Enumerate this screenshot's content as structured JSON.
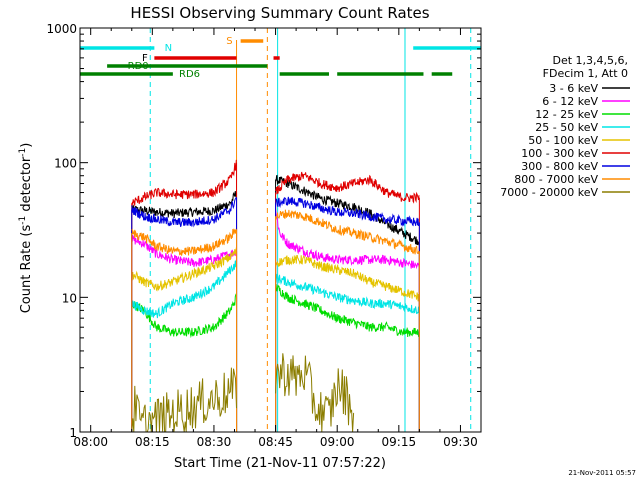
{
  "chart_data": {
    "type": "line",
    "title": "HESSI Observing Summary Count Rates",
    "xlabel": "Start Time (21-Nov-11 07:57:22)",
    "ylabel_main": "Count Rate (s",
    "ylabel_sup1": "-1",
    "ylabel_mid": " detector",
    "ylabel_sup2": "-1",
    "ylabel_end": ")",
    "y_scale": "log",
    "ylim": [
      1,
      1000
    ],
    "xlim_min": [
      -2.6,
      95
    ],
    "x_unit": "minutes after 08:00",
    "x_ticks": [
      {
        "label": "08:00",
        "value": 0
      },
      {
        "label": "08:15",
        "value": 15
      },
      {
        "label": "08:30",
        "value": 30
      },
      {
        "label": "08:45",
        "value": 45
      },
      {
        "label": "09:00",
        "value": 60
      },
      {
        "label": "09:15",
        "value": 75
      },
      {
        "label": "09:30",
        "value": 90
      }
    ],
    "y_ticks": [
      {
        "label": "1",
        "value": 1
      },
      {
        "label": "10",
        "value": 10
      },
      {
        "label": "100",
        "value": 100
      },
      {
        "label": "1000",
        "value": 1000
      }
    ],
    "legend_position": "right",
    "legend_header": [
      "Det 1,3,4,5,6,",
      "FDecim 1, Att 0"
    ],
    "legend": [
      {
        "label": "3 - 6 keV",
        "color": "#000000"
      },
      {
        "label": "6 - 12 keV",
        "color": "#ff00ff"
      },
      {
        "label": "12 - 25 keV",
        "color": "#00dd00"
      },
      {
        "label": "25 - 50 keV",
        "color": "#00e5e5"
      },
      {
        "label": "50 - 100 keV",
        "color": "#e5c300"
      },
      {
        "label": "100 - 300 keV",
        "color": "#e00000"
      },
      {
        "label": "300 - 800 keV",
        "color": "#0000e0"
      },
      {
        "label": "800 - 7000 keV",
        "color": "#ff8c00"
      },
      {
        "label": "7000 - 20000 keV",
        "color": "#8b7d00"
      }
    ],
    "flag_labels": {
      "saa": "S",
      "flare": "F",
      "night": "N",
      "rd0": "RD0",
      "rd6": "RD6"
    },
    "flags": {
      "saa": {
        "color": "#ff8c00",
        "intervals": [
          [
            36.5,
            42
          ]
        ]
      },
      "flare": {
        "color": "#e00000",
        "intervals": [
          [
            15.5,
            35.5
          ],
          [
            44.5,
            46
          ]
        ]
      },
      "night": {
        "color": "#00e5e5",
        "intervals": [
          [
            -2.6,
            15.5
          ],
          [
            78.5,
            95
          ]
        ]
      },
      "rd0": {
        "color": "#008000",
        "intervals": [
          [
            4,
            43
          ]
        ]
      },
      "rd6": {
        "color": "#008000",
        "intervals": [
          [
            -2.6,
            20
          ],
          [
            46,
            58
          ],
          [
            60,
            81
          ],
          [
            83,
            88
          ]
        ]
      }
    },
    "vlines_solid": {
      "color": "#00e5e5",
      "values": [
        45.5,
        76.5
      ]
    },
    "vlines_dashed": [
      {
        "color": "#00e5e5",
        "values": [
          14.5,
          92.5
        ]
      },
      {
        "color": "#ff8c00",
        "values": [
          43
        ]
      }
    ],
    "saa_verticals": {
      "color": "#ff8c00",
      "values": [
        35.5
      ]
    },
    "segments": [
      [
        10,
        35.5
      ],
      [
        45,
        80
      ]
    ],
    "series": [
      {
        "name": "3 - 6 keV",
        "color": "#000000",
        "points": [
          [
            10,
            45
          ],
          [
            13,
            44
          ],
          [
            16,
            43
          ],
          [
            20,
            42
          ],
          [
            25,
            43
          ],
          [
            30,
            44
          ],
          [
            34,
            50
          ],
          [
            35.5,
            60
          ],
          [
            45,
            75
          ],
          [
            48,
            70
          ],
          [
            52,
            62
          ],
          [
            56,
            54
          ],
          [
            60,
            50
          ],
          [
            64,
            47
          ],
          [
            68,
            42
          ],
          [
            72,
            35
          ],
          [
            76,
            30
          ],
          [
            80,
            26
          ]
        ]
      },
      {
        "name": "6 - 12 keV",
        "color": "#ff00ff",
        "points": [
          [
            10,
            27
          ],
          [
            13,
            25
          ],
          [
            16,
            21
          ],
          [
            20,
            19
          ],
          [
            25,
            18
          ],
          [
            30,
            19
          ],
          [
            34,
            21
          ],
          [
            35.5,
            22
          ],
          [
            45,
            45
          ],
          [
            46,
            30
          ],
          [
            48,
            25
          ],
          [
            52,
            22
          ],
          [
            56,
            20
          ],
          [
            60,
            19
          ],
          [
            64,
            19
          ],
          [
            68,
            19
          ],
          [
            72,
            19
          ],
          [
            76,
            18
          ],
          [
            80,
            17
          ]
        ]
      },
      {
        "name": "12 - 25 keV",
        "color": "#00dd00",
        "points": [
          [
            10,
            9
          ],
          [
            13,
            8
          ],
          [
            16,
            6
          ],
          [
            20,
            5.5
          ],
          [
            25,
            5.5
          ],
          [
            30,
            6
          ],
          [
            34,
            8
          ],
          [
            35.5,
            10
          ],
          [
            45,
            12
          ],
          [
            48,
            10
          ],
          [
            52,
            9
          ],
          [
            56,
            8
          ],
          [
            60,
            7
          ],
          [
            64,
            6.5
          ],
          [
            68,
            6
          ],
          [
            72,
            6
          ],
          [
            76,
            5.5
          ],
          [
            80,
            5.5
          ]
        ]
      },
      {
        "name": "25 - 50 keV",
        "color": "#00e5e5",
        "points": [
          [
            10,
            9
          ],
          [
            13,
            8
          ],
          [
            16,
            7.5
          ],
          [
            20,
            9
          ],
          [
            25,
            10
          ],
          [
            30,
            12
          ],
          [
            34,
            16
          ],
          [
            35.5,
            18
          ],
          [
            45,
            14
          ],
          [
            48,
            13
          ],
          [
            52,
            12
          ],
          [
            56,
            11
          ],
          [
            60,
            10
          ],
          [
            64,
            9.5
          ],
          [
            68,
            9
          ],
          [
            72,
            9
          ],
          [
            76,
            8.5
          ],
          [
            80,
            8
          ]
        ]
      },
      {
        "name": "50 - 100 keV",
        "color": "#e5c300",
        "points": [
          [
            10,
            15
          ],
          [
            13,
            13
          ],
          [
            16,
            12
          ],
          [
            20,
            13
          ],
          [
            25,
            15
          ],
          [
            30,
            17
          ],
          [
            34,
            20
          ],
          [
            35.5,
            22
          ],
          [
            45,
            18
          ],
          [
            48,
            19
          ],
          [
            52,
            19
          ],
          [
            56,
            17
          ],
          [
            60,
            16
          ],
          [
            64,
            15
          ],
          [
            68,
            13
          ],
          [
            72,
            12
          ],
          [
            76,
            11
          ],
          [
            80,
            10
          ]
        ]
      },
      {
        "name": "100 - 300 keV",
        "color": "#e00000",
        "points": [
          [
            10,
            50
          ],
          [
            13,
            55
          ],
          [
            16,
            60
          ],
          [
            20,
            58
          ],
          [
            25,
            58
          ],
          [
            30,
            60
          ],
          [
            34,
            75
          ],
          [
            35.5,
            100
          ],
          [
            45,
            60
          ],
          [
            48,
            75
          ],
          [
            52,
            80
          ],
          [
            56,
            70
          ],
          [
            60,
            65
          ],
          [
            64,
            70
          ],
          [
            68,
            75
          ],
          [
            72,
            60
          ],
          [
            76,
            55
          ],
          [
            80,
            55
          ]
        ]
      },
      {
        "name": "300 - 800 keV",
        "color": "#0000e0",
        "points": [
          [
            10,
            45
          ],
          [
            13,
            40
          ],
          [
            16,
            38
          ],
          [
            20,
            36
          ],
          [
            25,
            36
          ],
          [
            30,
            38
          ],
          [
            34,
            45
          ],
          [
            35.5,
            55
          ],
          [
            45,
            50
          ],
          [
            48,
            52
          ],
          [
            52,
            50
          ],
          [
            56,
            46
          ],
          [
            60,
            43
          ],
          [
            64,
            42
          ],
          [
            68,
            40
          ],
          [
            72,
            38
          ],
          [
            76,
            37
          ],
          [
            80,
            36
          ]
        ]
      },
      {
        "name": "800 - 7000 keV",
        "color": "#ff8c00",
        "points": [
          [
            10,
            30
          ],
          [
            13,
            28
          ],
          [
            16,
            24
          ],
          [
            20,
            22
          ],
          [
            25,
            22
          ],
          [
            30,
            24
          ],
          [
            34,
            28
          ],
          [
            35.5,
            32
          ],
          [
            45,
            40
          ],
          [
            48,
            42
          ],
          [
            52,
            40
          ],
          [
            56,
            36
          ],
          [
            60,
            32
          ],
          [
            64,
            30
          ],
          [
            68,
            28
          ],
          [
            72,
            26
          ],
          [
            76,
            24
          ],
          [
            80,
            22
          ]
        ]
      },
      {
        "name": "7000 - 20000 keV",
        "color": "#8b7d00",
        "points": [
          [
            10,
            1.2
          ],
          [
            11,
            1.6
          ],
          [
            12,
            1.1
          ],
          [
            47,
            2.8
          ],
          [
            50,
            2.5
          ],
          [
            52,
            2.8
          ],
          [
            55,
            1.5
          ],
          [
            58,
            1.3
          ],
          [
            60,
            2.2
          ],
          [
            62,
            1.9
          ],
          [
            64,
            1.4
          ]
        ]
      }
    ]
  },
  "footer": {
    "timestamp": "21-Nov-2011 05:57"
  }
}
